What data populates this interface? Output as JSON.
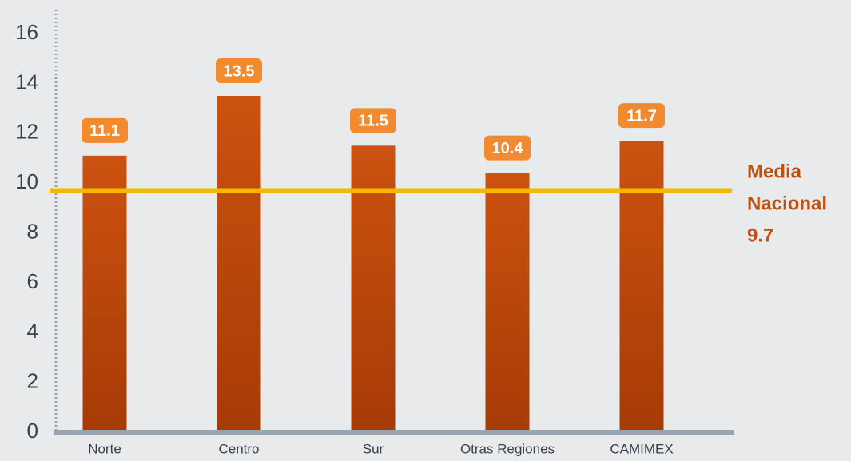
{
  "chart_data": {
    "type": "bar",
    "categories": [
      "Norte",
      "Centro",
      "Sur",
      "Otras Regiones",
      "CAMIMEX"
    ],
    "values": [
      11.1,
      13.5,
      11.5,
      10.4,
      11.7
    ],
    "color": "#c04a0c",
    "label_color": "#f28a30",
    "ylim": [
      0,
      16
    ],
    "yticks": [
      0,
      2,
      4,
      6,
      8,
      10,
      12,
      14,
      16
    ],
    "reference_line": {
      "value": 9.7,
      "label_lines": [
        "Media",
        "Nacional"
      ],
      "color": "#f5b800"
    }
  }
}
